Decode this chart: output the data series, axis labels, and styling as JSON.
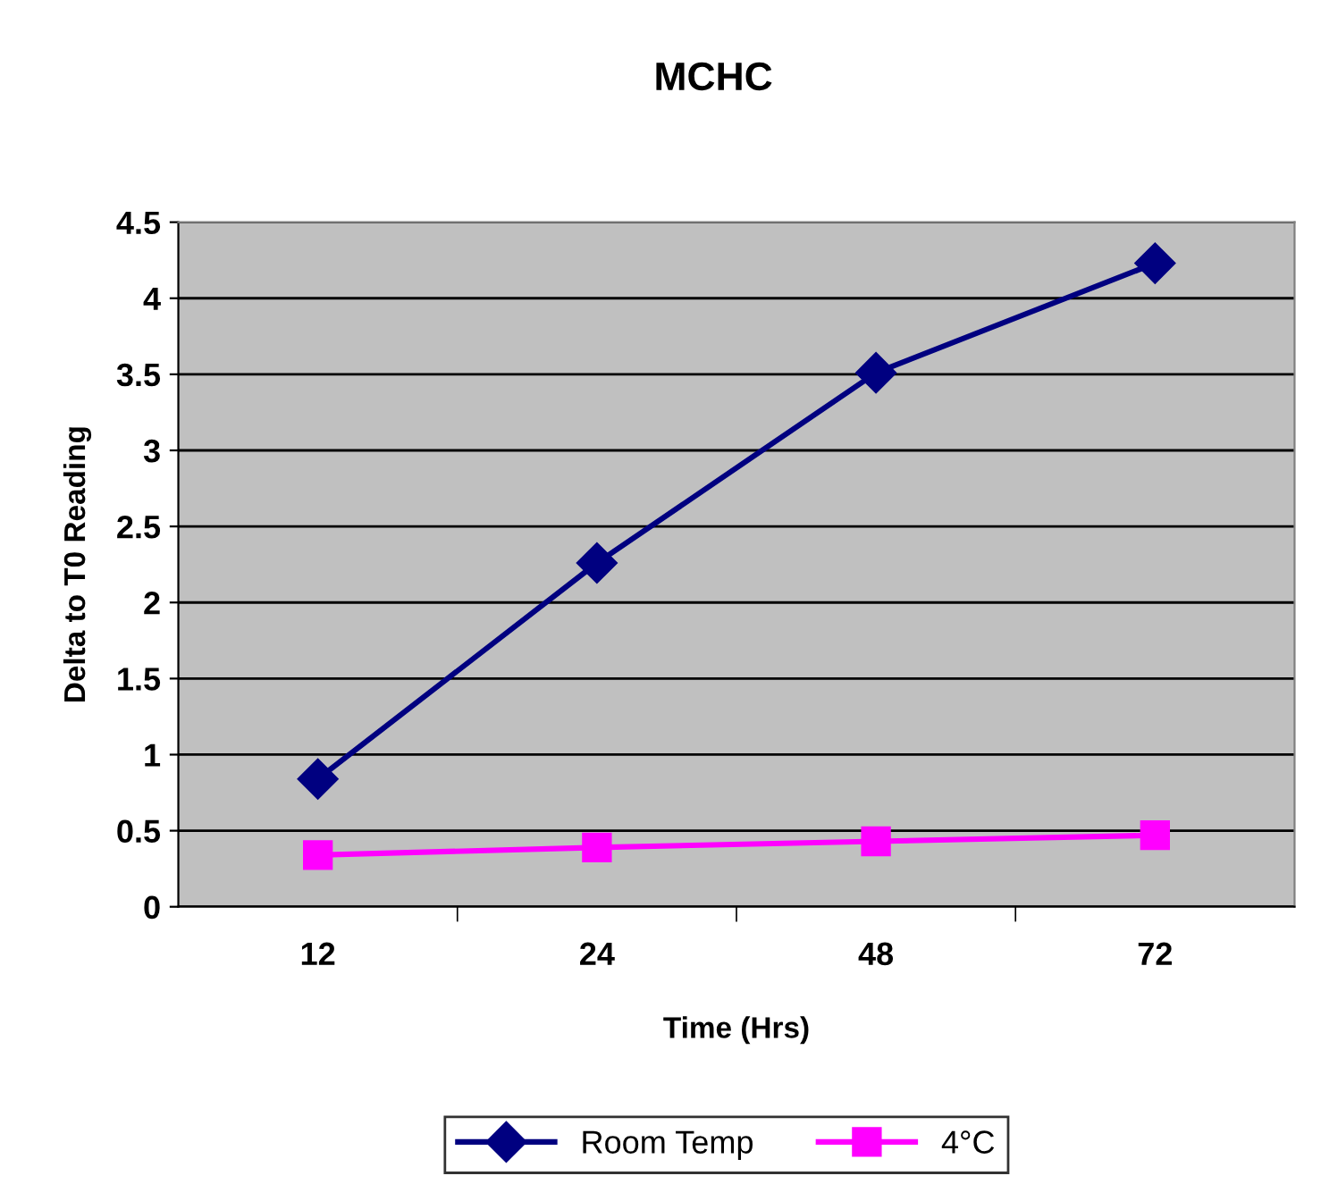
{
  "chart_data": {
    "type": "line",
    "title": "MCHC",
    "xlabel": "Time (Hrs)",
    "ylabel": "Delta to T0 Reading",
    "categories": [
      "12",
      "24",
      "48",
      "72"
    ],
    "series": [
      {
        "name": "Room Temp",
        "color": "#000080",
        "values": [
          0.84,
          2.26,
          3.51,
          4.23
        ],
        "marker": "diamond"
      },
      {
        "name": "4°C",
        "color": "#ff00ff",
        "values": [
          0.34,
          0.39,
          0.43,
          0.47
        ],
        "marker": "square"
      }
    ],
    "ylim": [
      0,
      4.5
    ],
    "yticks": [
      0,
      0.5,
      1,
      1.5,
      2,
      2.5,
      3,
      3.5,
      4,
      4.5
    ],
    "grid": "y",
    "legend": "bottom",
    "line_style": "solid"
  }
}
